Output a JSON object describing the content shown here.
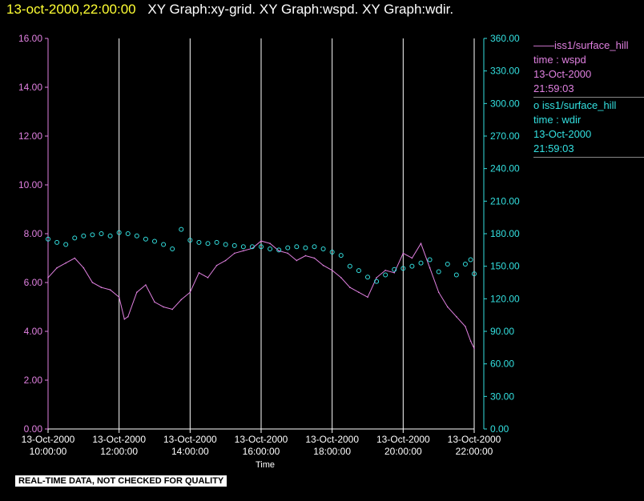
{
  "header": {
    "timestamp": "13-oct-2000,22:00:00",
    "titles": "XY Graph:xy-grid.  XY Graph:wspd.  XY Graph:wdir."
  },
  "legend": [
    {
      "marker": "——",
      "name": "iss1/surface_hill",
      "field": "time : wspd",
      "date": "13-Oct-2000",
      "time": "21:59:03",
      "color": "#e080e0"
    },
    {
      "marker": "o",
      "name": "iss1/surface_hill",
      "field": "time : wdir",
      "date": "13-Oct-2000",
      "time": "21:59:03",
      "color": "#33e0e0"
    }
  ],
  "footer": "REAL-TIME DATA, NOT CHECKED FOR QUALITY",
  "chart_data": {
    "type": "line",
    "title": "",
    "xlabel": "Time",
    "x_ticks": [
      {
        "date": "13-Oct-2000",
        "time": "10:00:00",
        "h": 10
      },
      {
        "date": "13-Oct-2000",
        "time": "12:00:00",
        "h": 12
      },
      {
        "date": "13-Oct-2000",
        "time": "14:00:00",
        "h": 14
      },
      {
        "date": "13-Oct-2000",
        "time": "16:00:00",
        "h": 16
      },
      {
        "date": "13-Oct-2000",
        "time": "18:00:00",
        "h": 18
      },
      {
        "date": "13-Oct-2000",
        "time": "20:00:00",
        "h": 20
      },
      {
        "date": "13-Oct-2000",
        "time": "22:00:00",
        "h": 22
      }
    ],
    "xlim": [
      10,
      22
    ],
    "y_left": {
      "ticks": [
        "0.00",
        "2.00",
        "4.00",
        "6.00",
        "8.00",
        "10.00",
        "12.00",
        "14.00",
        "16.00"
      ],
      "lim": [
        0,
        16
      ],
      "color": "#e080e0"
    },
    "y_right": {
      "ticks": [
        "0.00",
        "30.00",
        "60.00",
        "90.00",
        "120.00",
        "150.00",
        "180.00",
        "210.00",
        "240.00",
        "270.00",
        "300.00",
        "330.00",
        "360.00"
      ],
      "lim": [
        0,
        360
      ],
      "color": "#33e0e0"
    },
    "grid": "vertical at x ticks",
    "series": [
      {
        "axis": "left",
        "style": "line",
        "color": "#e080e0",
        "x": [
          10.0,
          10.25,
          10.5,
          10.75,
          11.0,
          11.25,
          11.5,
          11.75,
          12.0,
          12.15,
          12.25,
          12.5,
          12.75,
          13.0,
          13.25,
          13.5,
          13.75,
          14.0,
          14.25,
          14.5,
          14.75,
          15.0,
          15.25,
          15.5,
          15.75,
          16.0,
          16.25,
          16.5,
          16.75,
          17.0,
          17.25,
          17.5,
          17.75,
          18.0,
          18.25,
          18.5,
          18.75,
          19.0,
          19.25,
          19.5,
          19.75,
          20.0,
          20.25,
          20.5,
          20.75,
          21.0,
          21.25,
          21.5,
          21.75,
          21.9,
          22.0
        ],
        "y": [
          6.2,
          6.6,
          6.8,
          7.0,
          6.6,
          6.0,
          5.8,
          5.7,
          5.4,
          4.5,
          4.6,
          5.6,
          5.9,
          5.2,
          5.0,
          4.9,
          5.3,
          5.6,
          6.4,
          6.2,
          6.7,
          6.9,
          7.2,
          7.3,
          7.4,
          7.7,
          7.6,
          7.3,
          7.2,
          6.9,
          7.1,
          7.0,
          6.7,
          6.5,
          6.2,
          5.8,
          5.6,
          5.4,
          6.2,
          6.5,
          6.4,
          7.2,
          7.0,
          7.6,
          6.6,
          5.6,
          5.0,
          4.6,
          4.2,
          3.6,
          3.3
        ]
      },
      {
        "axis": "right",
        "style": "markers",
        "color": "#33e0e0",
        "x": [
          10.0,
          10.25,
          10.5,
          10.75,
          11.0,
          11.25,
          11.5,
          11.75,
          12.0,
          12.25,
          12.5,
          12.75,
          13.0,
          13.25,
          13.5,
          13.75,
          14.0,
          14.25,
          14.5,
          14.75,
          15.0,
          15.25,
          15.5,
          15.75,
          16.0,
          16.25,
          16.5,
          16.75,
          17.0,
          17.25,
          17.5,
          17.75,
          18.0,
          18.25,
          18.5,
          18.75,
          19.0,
          19.25,
          19.5,
          19.75,
          20.0,
          20.25,
          20.5,
          20.75,
          21.0,
          21.25,
          21.5,
          21.75,
          21.9,
          22.0
        ],
        "y": [
          175,
          172,
          170,
          176,
          178,
          179,
          180,
          178,
          181,
          180,
          178,
          175,
          173,
          170,
          166,
          184,
          174,
          172,
          171,
          172,
          170,
          169,
          168,
          168,
          168,
          166,
          165,
          167,
          168,
          167,
          168,
          166,
          163,
          160,
          150,
          146,
          140,
          136,
          142,
          147,
          148,
          150,
          153,
          156,
          145,
          152,
          142,
          152,
          156,
          143
        ]
      }
    ]
  }
}
